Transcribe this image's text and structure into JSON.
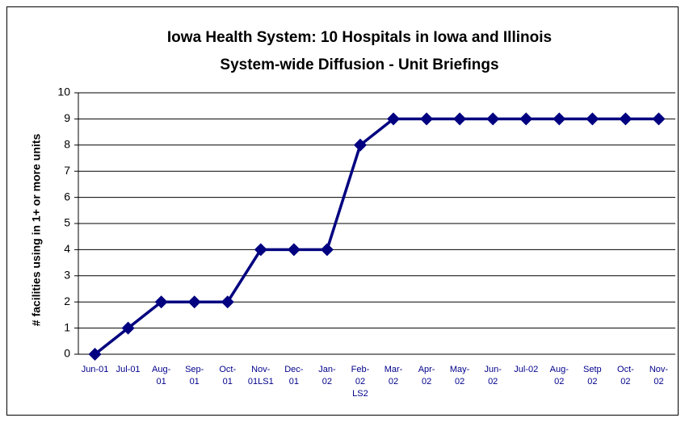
{
  "chart_data": {
    "type": "line",
    "title": "Iowa Health System: 10 Hospitals in Iowa and Illinois",
    "subtitle": "System-wide Diffusion - Unit Briefings",
    "y_label": "# facilities using in 1+ or more units",
    "categories": [
      "Jun-01",
      "Jul-01",
      "Aug-\n01",
      "Sep-\n01",
      "Oct-\n01",
      "Nov-\n01LS1",
      "Dec-\n01",
      "Jan-\n02",
      "Feb-\n02\nLS2",
      "Mar-\n02",
      "Apr-\n02",
      "May-\n02",
      "Jun-\n02",
      "Jul-02",
      "Aug-\n02",
      "Setp\n02",
      "Oct-\n02",
      "Nov-\n02"
    ],
    "series": [
      {
        "color": "#000080",
        "values": [
          0,
          1,
          2,
          2,
          2,
          4,
          4,
          4,
          8,
          9,
          9,
          9,
          9,
          9,
          9,
          9,
          9,
          9
        ]
      }
    ],
    "ylim": [
      0,
      10
    ],
    "yticks": [
      0,
      1,
      2,
      3,
      4,
      5,
      6,
      7,
      8,
      9,
      10
    ],
    "grid": true
  }
}
